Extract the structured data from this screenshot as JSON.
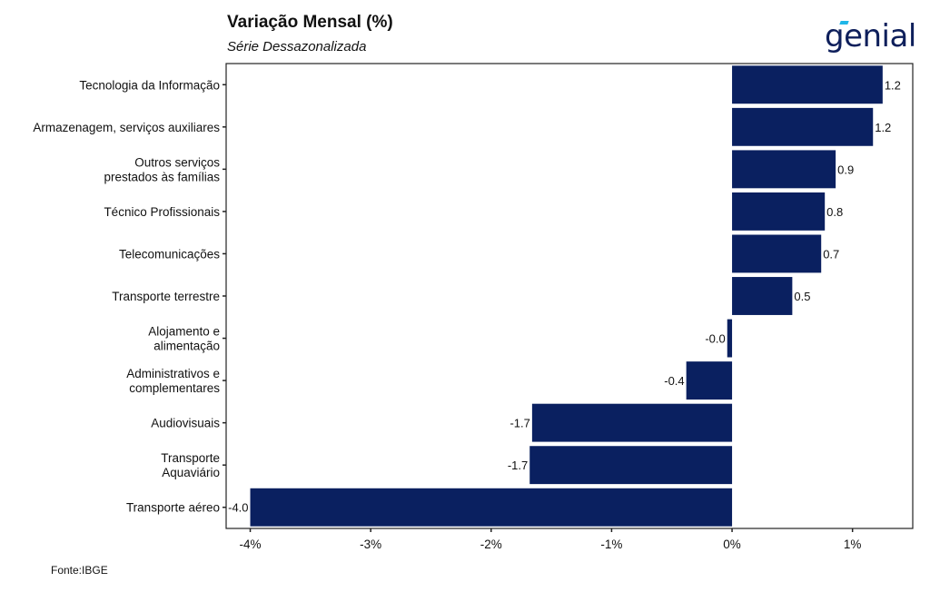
{
  "header": {
    "title": "Variação Mensal (%)",
    "subtitle": "Série Dessazonalizada"
  },
  "logo": {
    "text": "genial",
    "accent_color": "#1fb6e8",
    "color": "#0e1f5b"
  },
  "footer": {
    "source": "Fonte:IBGE"
  },
  "chart_data": {
    "type": "bar",
    "orientation": "horizontal",
    "title": "Variação Mensal (%)",
    "subtitle": "Série Dessazonalizada",
    "bar_color": "#0a2060",
    "categories": [
      [
        "Tecnologia da Informação"
      ],
      [
        "Armazenagem, serviços auxiliares"
      ],
      [
        "Outros serviços",
        "prestados às famílias"
      ],
      [
        "Técnico Profissionais"
      ],
      [
        "Telecomunicações"
      ],
      [
        "Transporte terrestre"
      ],
      [
        "Alojamento e",
        "alimentação"
      ],
      [
        "Administrativos e",
        "complementares"
      ],
      [
        "Audiovisuais"
      ],
      [
        "Transporte",
        "Aquaviário"
      ],
      [
        "Transporte aéreo"
      ]
    ],
    "values": [
      1.25,
      1.17,
      0.86,
      0.77,
      0.74,
      0.5,
      -0.04,
      -0.38,
      -1.66,
      -1.68,
      -4.0
    ],
    "data_labels": [
      "1.2",
      "1.2",
      "0.9",
      "0.8",
      "0.7",
      "0.5",
      "-0.0",
      "-0.4",
      "-1.7",
      "-1.7",
      "-4.0"
    ],
    "x_ticks": [
      -4,
      -3,
      -2,
      -1,
      0,
      1
    ],
    "x_tick_labels": [
      "-4%",
      "-3%",
      "-2%",
      "-1%",
      "0%",
      "1%"
    ],
    "xlim": [
      -4.2,
      1.5
    ],
    "grid": false,
    "legend": "none"
  }
}
